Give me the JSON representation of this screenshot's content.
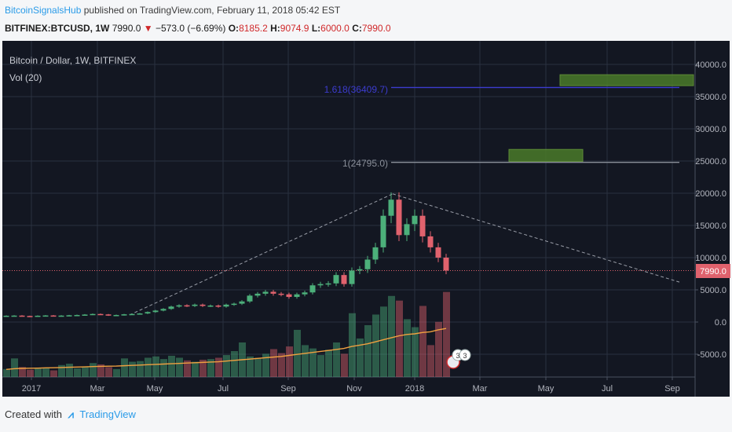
{
  "header": {
    "user": "BitcoinSignalsHub",
    "published_text": "published on TradingView.com, February 11, 2018 05:42 EST",
    "symbol": "BITFINEX:BTCUSD, 1W",
    "last": "7990.0",
    "arrow": "▼",
    "change": "−573.0 (−6.69%)",
    "o_label": "O:",
    "o_value": "8185.2",
    "h_label": "H:",
    "h_value": "9074.9",
    "l_label": "L:",
    "l_value": "6000.0",
    "c_label": "C:",
    "c_value": "7990.0"
  },
  "legend": {
    "series_label": "Bitcoin / Dollar, 1W, BITFINEX",
    "volume_label": "Vol (20)"
  },
  "annotations": {
    "fib_1618": "1.618(36409.7)",
    "fib_1": "1(24795.0)",
    "price_tag": "7990.0",
    "event_count_1": "3",
    "event_count_2": "3"
  },
  "footer": {
    "created_with": "Created with",
    "brand": "TradingView"
  },
  "colors": {
    "bg": "#131722",
    "grid": "#2a3140",
    "up": "#4caf7a",
    "down": "#e0626d",
    "ma": "#f0a040",
    "fib": "#3c3ccf",
    "target_box": "#4a7a2a"
  },
  "chart_data": {
    "type": "candlestick",
    "timeframe": "1W",
    "x_ticks": [
      "2017",
      "Mar",
      "May",
      "Jul",
      "Sep",
      "Nov",
      "2018",
      "Mar",
      "May",
      "Jul",
      "Sep"
    ],
    "y_ticks": [
      "40000.0",
      "35000.0",
      "30000.0",
      "25000.0",
      "20000.0",
      "15000.0",
      "10000.0",
      "5000.0",
      "0.0",
      "-5000.0"
    ],
    "ylim": [
      -8000,
      42500
    ],
    "candles_close": [
      980,
      1000,
      940,
      910,
      980,
      1020,
      980,
      1000,
      1050,
      1090,
      1160,
      1250,
      1180,
      1030,
      1090,
      1200,
      1250,
      1330,
      1550,
      1780,
      2040,
      2400,
      2600,
      2500,
      2700,
      2500,
      2560,
      2400,
      2700,
      2850,
      3200,
      4100,
      4400,
      4700,
      4400,
      4300,
      3900,
      4300,
      4600,
      5700,
      5900,
      6000,
      7300,
      5900,
      8000,
      8200,
      9700,
      11600,
      16500,
      19000,
      13500,
      15200,
      16500,
      13300,
      11600,
      10000,
      7990
    ],
    "volume": [
      1200,
      2800,
      1500,
      1100,
      1300,
      1400,
      1000,
      1800,
      2000,
      1300,
      1600,
      2100,
      1900,
      1500,
      1200,
      2800,
      2300,
      2400,
      2900,
      3100,
      2700,
      3200,
      2900,
      2500,
      2300,
      2600,
      2700,
      2900,
      3300,
      3900,
      5200,
      3100,
      2900,
      3500,
      4200,
      3600,
      4600,
      7100,
      4800,
      4300,
      3300,
      4100,
      5200,
      3500,
      9600,
      5800,
      7800,
      9400,
      10600,
      12200,
      11500,
      8700,
      7500,
      10700,
      4800,
      8300,
      12800
    ],
    "volume_ma20": [
      1150,
      1250,
      1300,
      1320,
      1340,
      1380,
      1400,
      1430,
      1470,
      1500,
      1530,
      1570,
      1600,
      1630,
      1650,
      1700,
      1750,
      1800,
      1850,
      1900,
      1950,
      2000,
      2050,
      2100,
      2150,
      2200,
      2250,
      2300,
      2400,
      2500,
      2600,
      2700,
      2800,
      2900,
      3000,
      3100,
      3250,
      3400,
      3550,
      3700,
      3850,
      4000,
      4150,
      4300,
      4600,
      4800,
      5000,
      5300,
      5600,
      5900,
      6200,
      6400,
      6500,
      6700,
      6800,
      7100,
      7300
    ],
    "fibonacci_levels": [
      {
        "label": "1.618",
        "value": 36409.7
      },
      {
        "label": "1",
        "value": 24795.0
      }
    ],
    "target_zones": [
      {
        "from_price": 36700,
        "to_price": 38400
      },
      {
        "from_price": 24900,
        "to_price": 26800
      }
    ],
    "current_price": 7990.0,
    "high_point": 19900
  }
}
